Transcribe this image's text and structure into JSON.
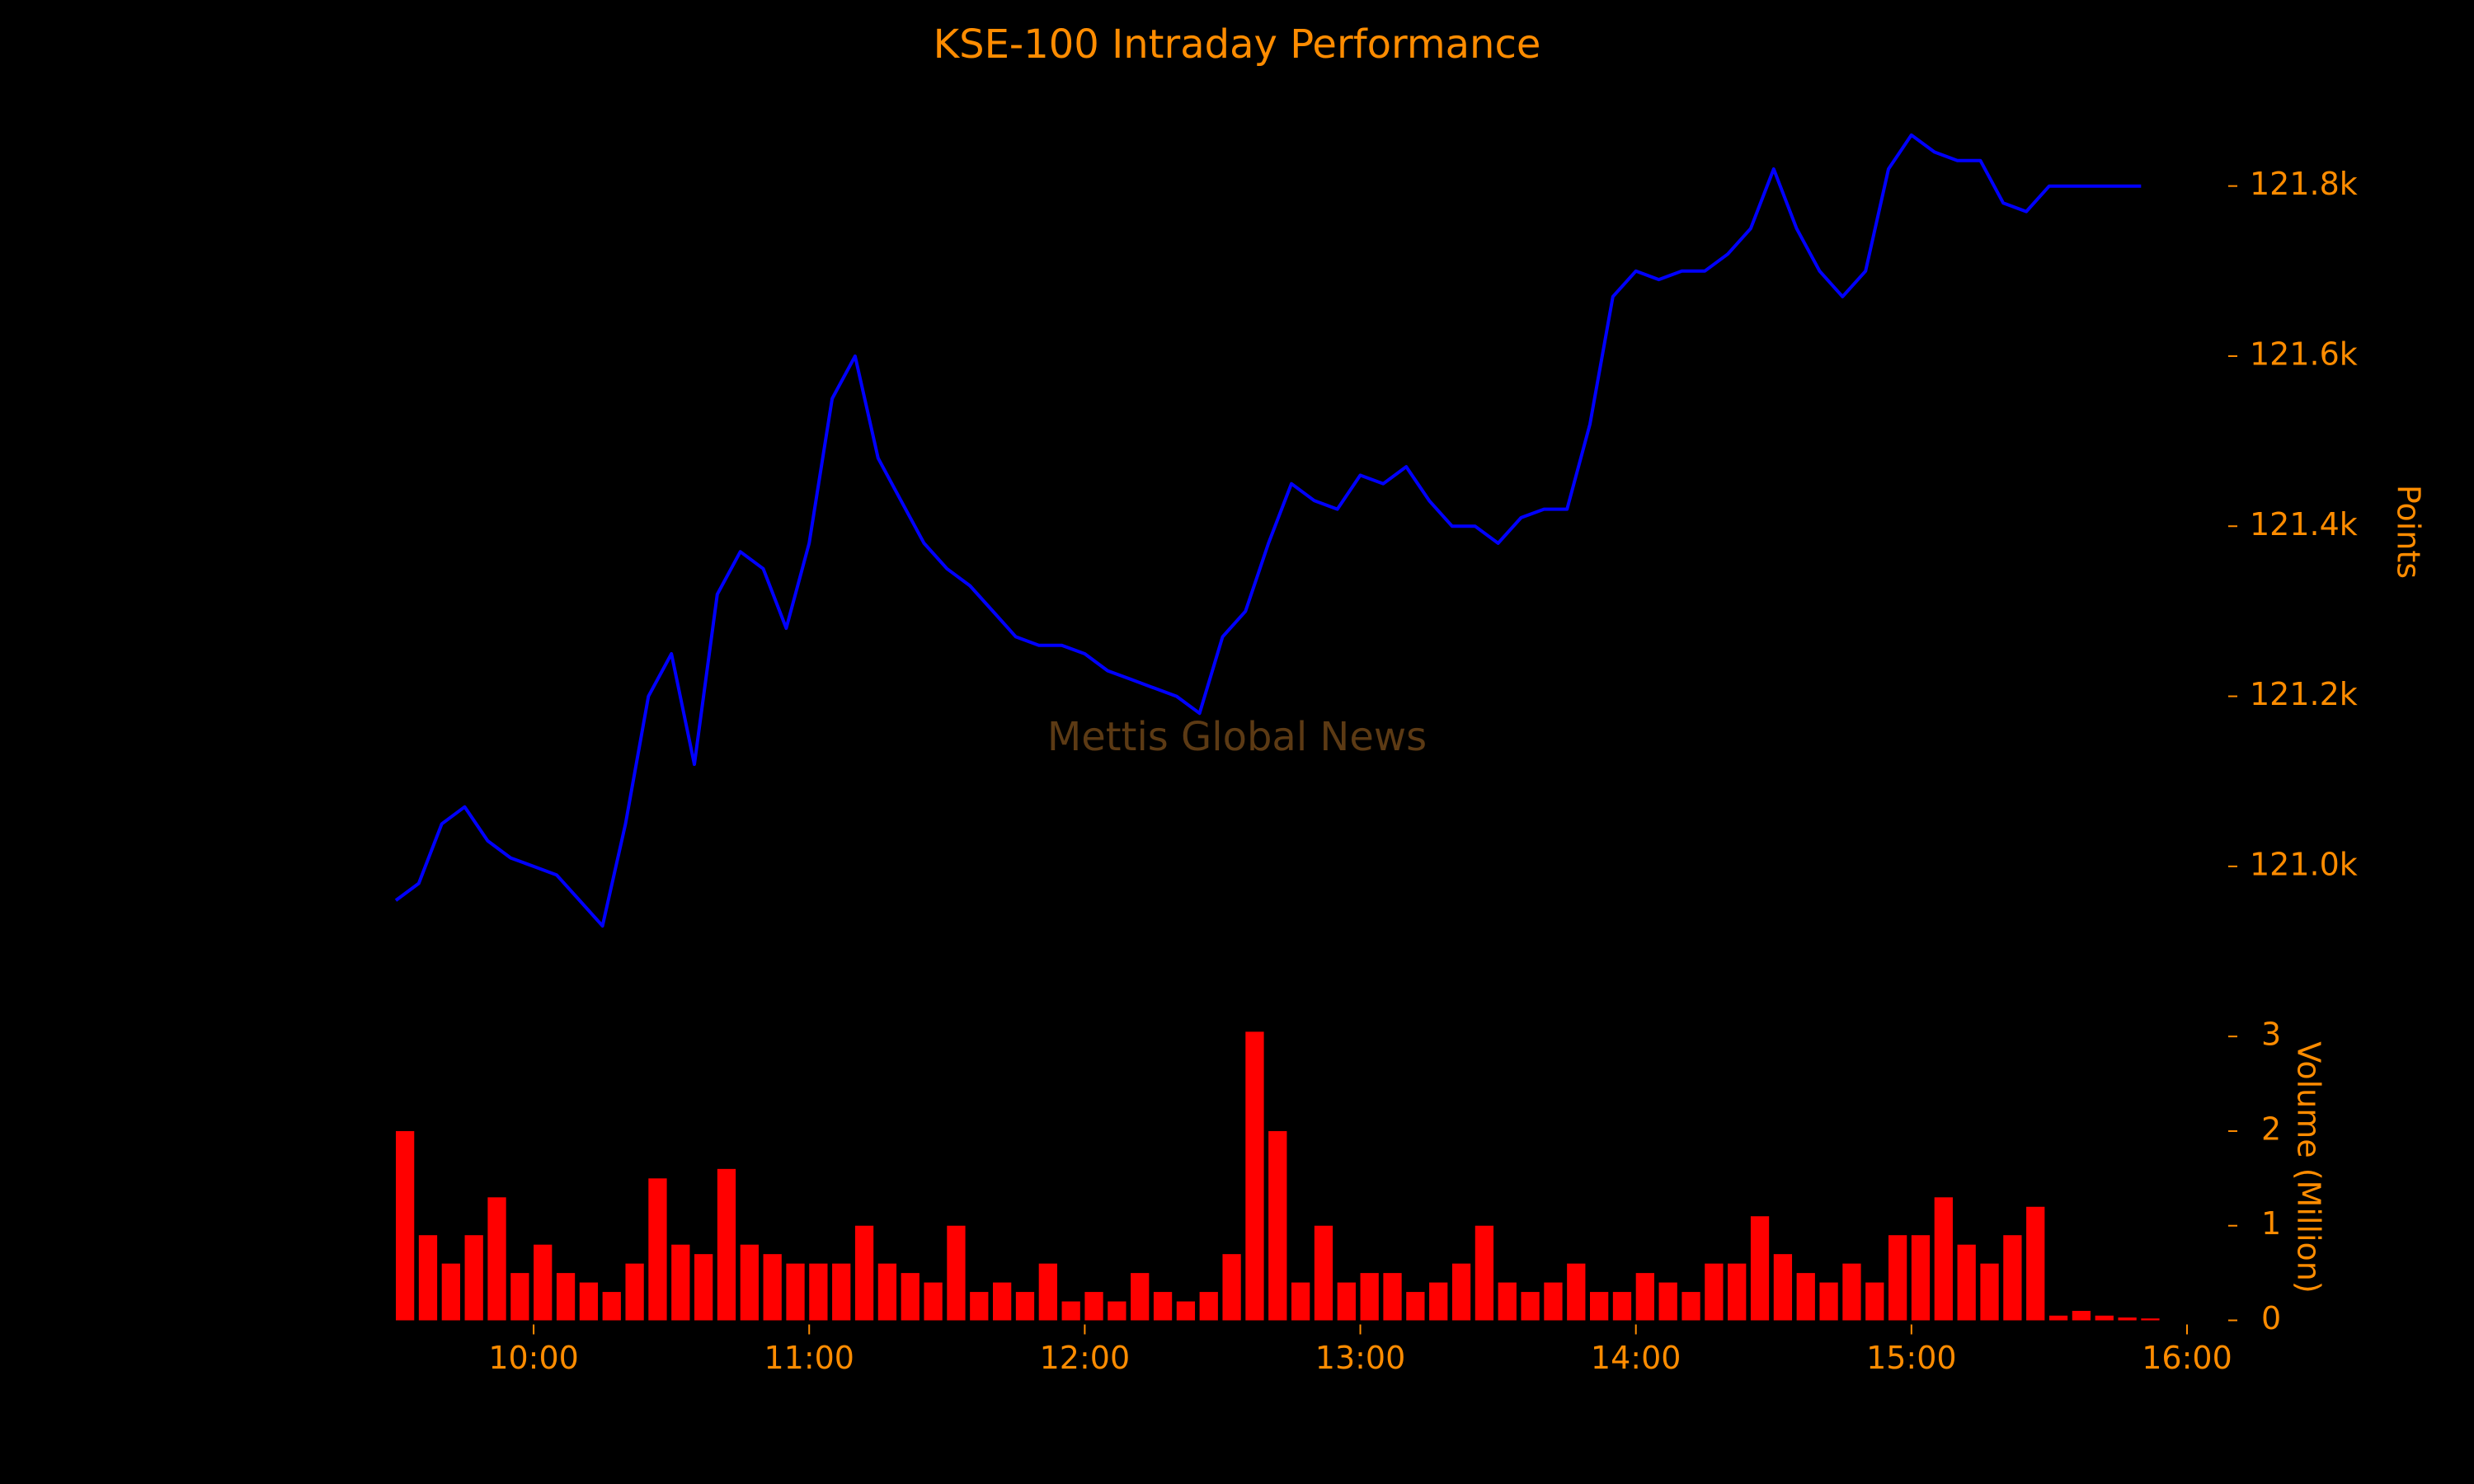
{
  "chart_data": [
    {
      "type": "line",
      "title": "KSE-100 Intraday Performance",
      "annotation": "Mettis Global News",
      "y_label": "Points",
      "x": [
        "09:30",
        "09:35",
        "09:40",
        "09:45",
        "09:50",
        "09:55",
        "10:00",
        "10:05",
        "10:10",
        "10:15",
        "10:20",
        "10:25",
        "10:30",
        "10:35",
        "10:40",
        "10:45",
        "10:50",
        "10:55",
        "11:00",
        "11:05",
        "11:10",
        "11:15",
        "11:20",
        "11:25",
        "11:30",
        "11:35",
        "11:40",
        "11:45",
        "11:50",
        "11:55",
        "12:00",
        "12:05",
        "12:10",
        "12:15",
        "12:20",
        "12:25",
        "12:30",
        "12:35",
        "12:40",
        "12:45",
        "12:50",
        "12:55",
        "13:00",
        "13:05",
        "13:10",
        "13:15",
        "13:20",
        "13:25",
        "13:30",
        "13:35",
        "13:40",
        "13:45",
        "13:50",
        "13:55",
        "14:00",
        "14:05",
        "14:10",
        "14:15",
        "14:20",
        "14:25",
        "14:30",
        "14:35",
        "14:40",
        "14:45",
        "14:50",
        "14:55",
        "15:00",
        "15:05",
        "15:10",
        "15:15",
        "15:20",
        "15:25",
        "15:30",
        "15:35",
        "15:40",
        "15:45",
        "15:50"
      ],
      "series": [
        {
          "name": "KSE-100",
          "color": "#0000ff",
          "values": [
            120960,
            120980,
            121050,
            121070,
            121030,
            121010,
            121000,
            120990,
            120960,
            120930,
            121050,
            121200,
            121250,
            121120,
            121320,
            121370,
            121350,
            121280,
            121380,
            121550,
            121600,
            121480,
            121430,
            121380,
            121350,
            121330,
            121300,
            121270,
            121260,
            121260,
            121250,
            121230,
            121220,
            121210,
            121200,
            121180,
            121270,
            121300,
            121380,
            121450,
            121430,
            121420,
            121460,
            121450,
            121470,
            121430,
            121400,
            121400,
            121380,
            121410,
            121420,
            121420,
            121520,
            121670,
            121700,
            121690,
            121700,
            121700,
            121720,
            121750,
            121820,
            121750,
            121700,
            121670,
            121700,
            121820,
            121860,
            121840,
            121830,
            121830,
            121780,
            121770,
            121800,
            121800,
            121800,
            121800,
            121800
          ]
        }
      ],
      "xlim": [
        "09:30",
        "16:00"
      ],
      "ylim": [
        120850,
        121900
      ],
      "yticks": [
        {
          "value": 121000,
          "label": "121.0k"
        },
        {
          "value": 121200,
          "label": "121.2k"
        },
        {
          "value": 121400,
          "label": "121.4k"
        },
        {
          "value": 121600,
          "label": "121.6k"
        },
        {
          "value": 121800,
          "label": "121.8k"
        }
      ]
    },
    {
      "type": "bar",
      "y_label": "Volume (Million)",
      "color": "#ff0000",
      "x": [
        "09:30",
        "09:35",
        "09:40",
        "09:45",
        "09:50",
        "09:55",
        "10:00",
        "10:05",
        "10:10",
        "10:15",
        "10:20",
        "10:25",
        "10:30",
        "10:35",
        "10:40",
        "10:45",
        "10:50",
        "10:55",
        "11:00",
        "11:05",
        "11:10",
        "11:15",
        "11:20",
        "11:25",
        "11:30",
        "11:35",
        "11:40",
        "11:45",
        "11:50",
        "11:55",
        "12:00",
        "12:05",
        "12:10",
        "12:15",
        "12:20",
        "12:25",
        "12:30",
        "12:35",
        "12:40",
        "12:45",
        "12:50",
        "12:55",
        "13:00",
        "13:05",
        "13:10",
        "13:15",
        "13:20",
        "13:25",
        "13:30",
        "13:35",
        "13:40",
        "13:45",
        "13:50",
        "13:55",
        "14:00",
        "14:05",
        "14:10",
        "14:15",
        "14:20",
        "14:25",
        "14:30",
        "14:35",
        "14:40",
        "14:45",
        "14:50",
        "14:55",
        "15:00",
        "15:05",
        "15:10",
        "15:15",
        "15:20",
        "15:25",
        "15:30",
        "15:35",
        "15:40",
        "15:45",
        "15:50"
      ],
      "values": [
        2.0,
        0.9,
        0.6,
        0.9,
        1.3,
        0.5,
        0.8,
        0.5,
        0.4,
        0.3,
        0.6,
        1.5,
        0.8,
        0.7,
        1.6,
        0.8,
        0.7,
        0.6,
        0.6,
        0.6,
        1.0,
        0.6,
        0.5,
        0.4,
        1.0,
        0.3,
        0.4,
        0.3,
        0.6,
        0.2,
        0.3,
        0.2,
        0.5,
        0.3,
        0.2,
        0.3,
        0.7,
        3.05,
        2.0,
        0.4,
        1.0,
        0.4,
        0.5,
        0.5,
        0.3,
        0.4,
        0.6,
        1.0,
        0.4,
        0.3,
        0.4,
        0.6,
        0.3,
        0.3,
        0.5,
        0.4,
        0.3,
        0.6,
        0.6,
        1.1,
        0.7,
        0.5,
        0.4,
        0.6,
        0.4,
        0.9,
        0.9,
        1.3,
        0.8,
        0.6,
        0.9,
        1.2,
        0.05,
        0.1,
        0.05,
        0.03,
        0.02
      ],
      "xlim": [
        "09:30",
        "16:00"
      ],
      "xticks": [
        "10:00",
        "11:00",
        "12:00",
        "13:00",
        "14:00",
        "15:00",
        "16:00"
      ],
      "ylim": [
        0,
        3.2
      ],
      "yticks": [
        0,
        1,
        2,
        3
      ]
    }
  ]
}
